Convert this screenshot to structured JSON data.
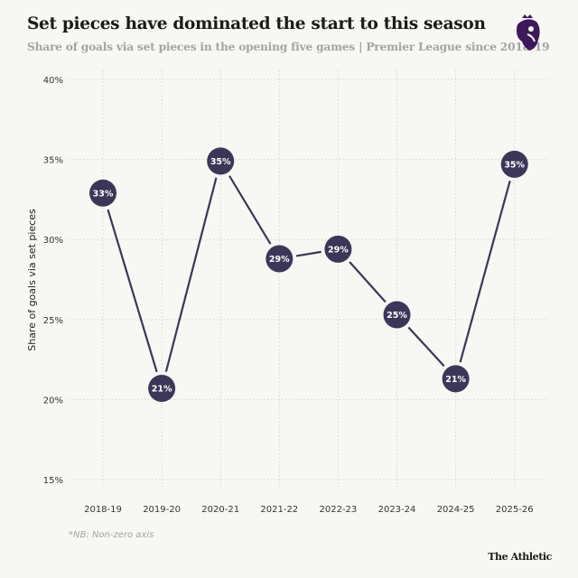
{
  "header": {
    "title": "Set pieces have dominated the start to this season",
    "subtitle": "Share of goals via set pieces in the opening five games | Premier League since 2018-19",
    "logo": "Premier League lion logo"
  },
  "chart_data": {
    "type": "line",
    "title": "Set pieces have dominated the start to this season",
    "subtitle": "Share of goals via set pieces in the opening five games | Premier League since 2018-19",
    "xlabel": "",
    "ylabel": "Share of goals via set pieces",
    "categories": [
      "2018-19",
      "2019-20",
      "2020-21",
      "2021-22",
      "2022-23",
      "2023-24",
      "2024-25",
      "2025-26"
    ],
    "values": [
      32.9,
      20.7,
      34.9,
      28.8,
      29.4,
      25.3,
      21.3,
      34.7
    ],
    "data_labels": [
      "33%",
      "21%",
      "35%",
      "29%",
      "29%",
      "25%",
      "21%",
      "35%"
    ],
    "ylim": [
      15,
      40
    ],
    "yticks": [
      15,
      20,
      25,
      30,
      35,
      40
    ],
    "ytick_labels": [
      "15%",
      "20%",
      "25%",
      "30%",
      "35%",
      "40%"
    ],
    "grid": true,
    "colors": {
      "marker": "#3d3658",
      "line": "#3d3658",
      "label": "#ffffff",
      "grid": "#d6d6d0",
      "background": "#f7f7f3"
    }
  },
  "footer": {
    "note": "*NB: Non-zero axis",
    "brand": "The Athletic"
  }
}
